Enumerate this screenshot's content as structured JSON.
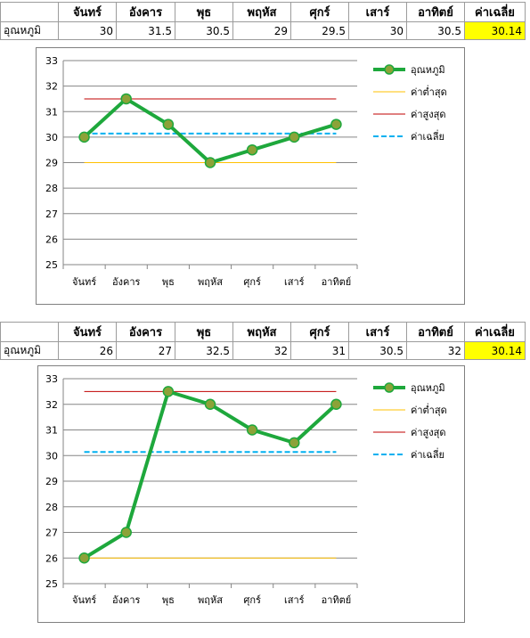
{
  "tables": [
    {
      "headers": [
        "จันทร์",
        "อังคาร",
        "พุธ",
        "พฤหัส",
        "ศุกร์",
        "เสาร์",
        "อาทิตย์",
        "ค่าเฉลี่ย"
      ],
      "row_label": "อุณหภูมิ",
      "cells": [
        "30",
        "31.5",
        "30.5",
        "29",
        "29.5",
        "30",
        "30.5",
        "30.14"
      ]
    },
    {
      "headers": [
        "จันทร์",
        "อังคาร",
        "พุธ",
        "พฤหัส",
        "ศุกร์",
        "เสาร์",
        "อาทิตย์",
        "ค่าเฉลี่ย"
      ],
      "row_label": "อุณหภูมิ",
      "cells": [
        "26",
        "27",
        "32.5",
        "32",
        "31",
        "30.5",
        "32",
        "30.14"
      ]
    }
  ],
  "colors": {
    "temperature": "#1ea83c",
    "marker_fill": "#8ca238",
    "minimum": "#ffc000",
    "maximum": "#c00000",
    "average": "#00b0f0",
    "gridline": "#868686",
    "highlight": "#ffff00"
  },
  "chart_data": [
    {
      "type": "line",
      "categories": [
        "จันทร์",
        "อังคาร",
        "พุธ",
        "พฤหัส",
        "ศุกร์",
        "เสาร์",
        "อาทิตย์"
      ],
      "series": [
        {
          "name": "อุณหภูมิ",
          "values": [
            30,
            31.5,
            30.5,
            29,
            29.5,
            30,
            30.5
          ],
          "style": "marker-line"
        },
        {
          "name": "ค่าต่ำสุด",
          "values": [
            29,
            29,
            29,
            29,
            29,
            29,
            29
          ],
          "style": "thin"
        },
        {
          "name": "ค่าสูงสุด",
          "values": [
            31.5,
            31.5,
            31.5,
            31.5,
            31.5,
            31.5,
            31.5
          ],
          "style": "thin"
        },
        {
          "name": "ค่าเฉลี่ย",
          "values": [
            30.14,
            30.14,
            30.14,
            30.14,
            30.14,
            30.14,
            30.14
          ],
          "style": "dashed"
        }
      ],
      "ylim": [
        25,
        33
      ],
      "yticks": [
        "25",
        "26",
        "27",
        "28",
        "29",
        "30",
        "31",
        "32",
        "33"
      ],
      "grid": true,
      "legend": "right"
    },
    {
      "type": "line",
      "categories": [
        "จันทร์",
        "อังคาร",
        "พุธ",
        "พฤหัส",
        "ศุกร์",
        "เสาร์",
        "อาทิตย์"
      ],
      "series": [
        {
          "name": "อุณหภูมิ",
          "values": [
            26,
            27,
            32.5,
            32,
            31,
            30.5,
            32
          ],
          "style": "marker-line"
        },
        {
          "name": "ค่าต่ำสุด",
          "values": [
            26,
            26,
            26,
            26,
            26,
            26,
            26
          ],
          "style": "thin"
        },
        {
          "name": "ค่าสูงสุด",
          "values": [
            32.5,
            32.5,
            32.5,
            32.5,
            32.5,
            32.5,
            32.5
          ],
          "style": "thin"
        },
        {
          "name": "ค่าเฉลี่ย",
          "values": [
            30.14,
            30.14,
            30.14,
            30.14,
            30.14,
            30.14,
            30.14
          ],
          "style": "dashed"
        }
      ],
      "ylim": [
        25,
        33
      ],
      "yticks": [
        "25",
        "26",
        "27",
        "28",
        "29",
        "30",
        "31",
        "32",
        "33"
      ],
      "grid": true,
      "legend": "right"
    }
  ]
}
